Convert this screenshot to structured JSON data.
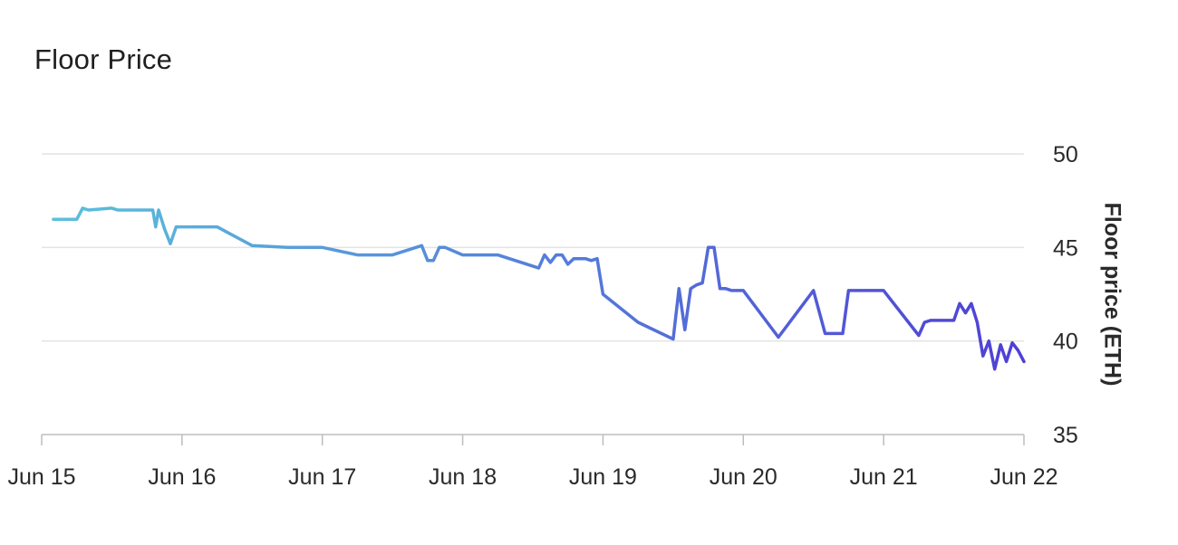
{
  "title": "Floor Price",
  "chart_data": {
    "type": "line",
    "title": "Floor Price",
    "xlabel": "",
    "ylabel": "Floor price (ETH)",
    "x_ticks": [
      "Jun 15",
      "Jun 16",
      "Jun 17",
      "Jun 18",
      "Jun 19",
      "Jun 20",
      "Jun 21",
      "Jun 22"
    ],
    "y_ticks": [
      35,
      40,
      45,
      50
    ],
    "xlim": [
      "Jun 15",
      "Jun 22"
    ],
    "ylim": [
      35,
      50
    ],
    "y_axis_side": "right",
    "grid": "horizontal",
    "gradient_colors": [
      "#5bc0dc",
      "#4f3fd6"
    ],
    "series": [
      {
        "x": [
          "Jun 15 02:00",
          "Jun 15 06:00",
          "Jun 15 07:00",
          "Jun 15 08:00",
          "Jun 15 12:00",
          "Jun 15 13:00",
          "Jun 15 14:00",
          "Jun 15 19:00",
          "Jun 15 19:30",
          "Jun 15 20:00",
          "Jun 15 21:00",
          "Jun 15 22:00",
          "Jun 15 23:00",
          "Jun 16 00:00",
          "Jun 16 01:00",
          "Jun 16 02:00",
          "Jun 16 03:00",
          "Jun 16 06:00",
          "Jun 16 12:00",
          "Jun 16 18:00",
          "Jun 17 00:00",
          "Jun 17 06:00",
          "Jun 17 12:00",
          "Jun 17 17:00",
          "Jun 17 18:00",
          "Jun 17 19:00",
          "Jun 17 20:00",
          "Jun 17 21:00",
          "Jun 18 00:00",
          "Jun 18 06:00",
          "Jun 18 13:00",
          "Jun 18 14:00",
          "Jun 18 15:00",
          "Jun 18 16:00",
          "Jun 18 17:00",
          "Jun 18 18:00",
          "Jun 18 19:00",
          "Jun 18 20:00",
          "Jun 18 21:00",
          "Jun 18 22:00",
          "Jun 18 23:00",
          "Jun 19 00:00",
          "Jun 19 06:00",
          "Jun 19 12:00",
          "Jun 19 13:00",
          "Jun 19 14:00",
          "Jun 19 15:00",
          "Jun 19 16:00",
          "Jun 19 17:00",
          "Jun 19 18:00",
          "Jun 19 19:00",
          "Jun 19 20:00",
          "Jun 19 21:00",
          "Jun 19 22:00",
          "Jun 19 23:00",
          "Jun 20 00:00",
          "Jun 20 06:00",
          "Jun 20 12:00",
          "Jun 20 14:00",
          "Jun 20 15:00",
          "Jun 20 16:00",
          "Jun 20 17:00",
          "Jun 20 18:00",
          "Jun 20 22:00",
          "Jun 21 00:00",
          "Jun 21 06:00",
          "Jun 21 07:00",
          "Jun 21 08:00",
          "Jun 21 12:00",
          "Jun 21 13:00",
          "Jun 21 14:00",
          "Jun 21 15:00",
          "Jun 21 16:00",
          "Jun 21 17:00",
          "Jun 21 18:00",
          "Jun 21 19:00",
          "Jun 21 20:00",
          "Jun 21 21:00",
          "Jun 21 22:00",
          "Jun 21 23:00",
          "Jun 22 00:00"
        ],
        "y": [
          46.5,
          46.5,
          47.1,
          47.0,
          47.1,
          47.0,
          47.0,
          47.0,
          46.1,
          47.0,
          46.0,
          45.2,
          46.1,
          46.1,
          46.1,
          46.1,
          46.1,
          46.1,
          45.1,
          45.0,
          45.0,
          44.6,
          44.6,
          45.1,
          44.3,
          44.3,
          45.0,
          45.0,
          44.6,
          44.6,
          43.9,
          44.6,
          44.2,
          44.6,
          44.6,
          44.1,
          44.4,
          44.4,
          44.4,
          44.3,
          44.4,
          42.5,
          41.0,
          40.1,
          42.8,
          40.6,
          42.8,
          43.0,
          43.1,
          45.0,
          45.0,
          42.8,
          42.8,
          42.7,
          42.7,
          42.7,
          40.2,
          42.7,
          40.4,
          40.4,
          40.4,
          40.4,
          42.7,
          42.7,
          42.7,
          40.3,
          41.0,
          41.1,
          41.1,
          42.0,
          41.5,
          42.0,
          41.0,
          39.2,
          40.0,
          38.5,
          39.8,
          38.9,
          39.9,
          39.5,
          38.9
        ]
      }
    ]
  }
}
